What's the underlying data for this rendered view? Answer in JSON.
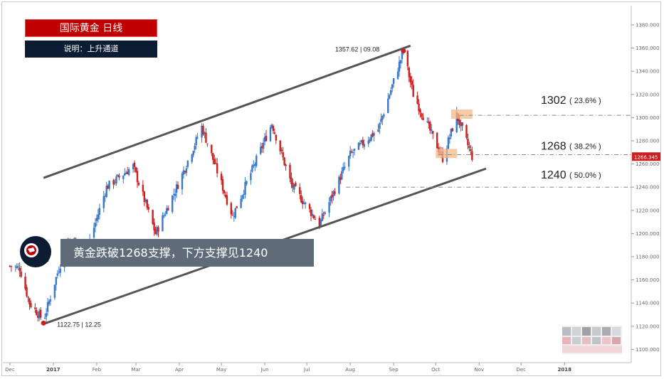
{
  "title": "国际黄金  日线",
  "subtitle": "说明：上升通道",
  "callout": "黄金跌破1268支撑，下方支撑见1240",
  "price_label": "1266.345",
  "annotations": {
    "high": "1357.62 | 09.08",
    "low": "1122.75 | 12.25"
  },
  "levels": [
    {
      "main": "1302",
      "sub": "( 23.6% )",
      "value": 1302
    },
    {
      "main": "1268",
      "sub": "( 38.2% )",
      "value": 1268
    },
    {
      "main": "1240",
      "sub": "( 50.0% )",
      "value": 1240
    }
  ],
  "colors": {
    "up": "#3a78c9",
    "down": "#cc1f1f",
    "channel": "#555555",
    "title_bg": "#c00000",
    "subtitle_bg": "#0c1d33",
    "callout_bg": "#5f6b78",
    "highlight": "#f6b98a"
  },
  "chart_data": {
    "type": "candlestick",
    "title": "国际黄金  日线",
    "ylim": [
      1090,
      1390
    ],
    "y_ticks": [
      "1380.000",
      "1360.000",
      "1340.000",
      "1320.000",
      "1300.000",
      "1280.000",
      "1260.000",
      "1240.000",
      "1220.000",
      "1200.000",
      "1180.000",
      "1160.000",
      "1140.000",
      "1120.000",
      "1100.000"
    ],
    "x_ticks": [
      "Dec",
      "2017",
      "Feb",
      "Mar",
      "Apr",
      "May",
      "Jun",
      "Jul",
      "Aug",
      "Sep",
      "Oct",
      "Nov",
      "Dec",
      "2018"
    ],
    "x_ticks_bold": [
      "2017",
      "2018"
    ],
    "close_path": [
      {
        "date": "2016-12-01",
        "close": 1172
      },
      {
        "date": "2016-12-08",
        "close": 1170
      },
      {
        "date": "2016-12-15",
        "close": 1140
      },
      {
        "date": "2016-12-25",
        "close": 1125
      },
      {
        "date": "2017-01-05",
        "close": 1170
      },
      {
        "date": "2017-01-12",
        "close": 1195
      },
      {
        "date": "2017-01-26",
        "close": 1190
      },
      {
        "date": "2017-02-08",
        "close": 1240
      },
      {
        "date": "2017-02-27",
        "close": 1258
      },
      {
        "date": "2017-03-15",
        "close": 1200
      },
      {
        "date": "2017-04-01",
        "close": 1245
      },
      {
        "date": "2017-04-17",
        "close": 1292
      },
      {
        "date": "2017-05-09",
        "close": 1215
      },
      {
        "date": "2017-06-06",
        "close": 1295
      },
      {
        "date": "2017-06-20",
        "close": 1242
      },
      {
        "date": "2017-07-10",
        "close": 1208
      },
      {
        "date": "2017-08-01",
        "close": 1268
      },
      {
        "date": "2017-08-21",
        "close": 1290
      },
      {
        "date": "2017-09-08",
        "close": 1357.62
      },
      {
        "date": "2017-09-15",
        "close": 1320
      },
      {
        "date": "2017-10-06",
        "close": 1265
      },
      {
        "date": "2017-10-16",
        "close": 1302
      },
      {
        "date": "2017-10-27",
        "close": 1266.345
      }
    ],
    "channel": [
      {
        "name": "upper",
        "from": {
          "date": "2016-12-25",
          "value": 1248
        },
        "to": {
          "date": "2017-09-13",
          "value": 1362
        }
      },
      {
        "name": "lower",
        "from": {
          "date": "2016-12-25",
          "value": 1122
        },
        "to": {
          "date": "2017-11-06",
          "value": 1256
        }
      }
    ],
    "markers": [
      {
        "label": "1357.62 | 09.08",
        "date": "2017-09-08",
        "value": 1357.62
      },
      {
        "label": "1122.75 | 12.25",
        "date": "2016-12-25",
        "value": 1122.75
      }
    ],
    "horizontal_levels": [
      1302,
      1268,
      1240
    ],
    "last_price": 1266.345
  }
}
